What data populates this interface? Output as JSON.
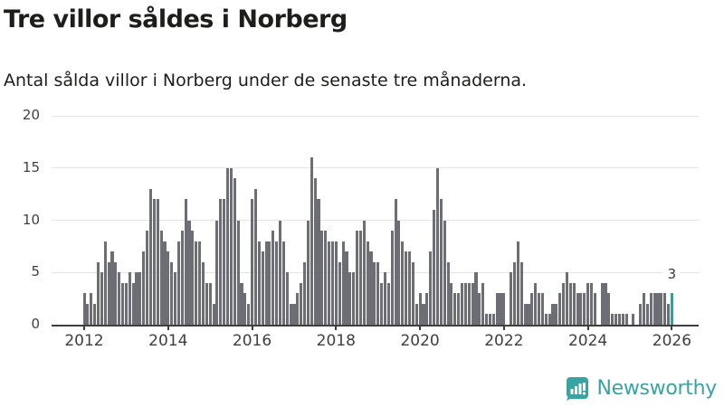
{
  "header": {
    "title": "Tre villor såldes i Norberg",
    "subtitle": "Antal sålda villor i Norberg under de senaste tre månaderna."
  },
  "chart_data": {
    "type": "bar",
    "title": "Tre villor såldes i Norberg",
    "subtitle": "Antal sålda villor i Norberg under de senaste tre månaderna.",
    "x_description": "months, January 2012 - January 2026",
    "start_month": "2012-01",
    "frequency": "monthly",
    "values": [
      3,
      2,
      3,
      2,
      6,
      5,
      8,
      6,
      7,
      6,
      5,
      4,
      4,
      5,
      4,
      5,
      5,
      7,
      9,
      13,
      12,
      12,
      9,
      8,
      7,
      6,
      5,
      8,
      9,
      12,
      10,
      9,
      8,
      8,
      6,
      4,
      4,
      2,
      10,
      12,
      12,
      15,
      15,
      14,
      10,
      4,
      3,
      2,
      12,
      13,
      8,
      7,
      8,
      8,
      9,
      8,
      10,
      8,
      5,
      2,
      2,
      3,
      4,
      6,
      10,
      16,
      14,
      12,
      9,
      9,
      8,
      8,
      8,
      6,
      8,
      7,
      5,
      5,
      9,
      9,
      10,
      8,
      7,
      6,
      6,
      4,
      5,
      4,
      9,
      12,
      10,
      8,
      7,
      7,
      6,
      2,
      3,
      2,
      3,
      7,
      11,
      15,
      12,
      10,
      6,
      4,
      3,
      3,
      4,
      4,
      4,
      4,
      5,
      3,
      4,
      1,
      1,
      1,
      3,
      3,
      3,
      0,
      5,
      6,
      8,
      6,
      2,
      2,
      3,
      4,
      3,
      3,
      1,
      1,
      2,
      2,
      3,
      4,
      5,
      4,
      4,
      3,
      3,
      3,
      4,
      4,
      3,
      0,
      4,
      4,
      3,
      1,
      1,
      1,
      1,
      1,
      0,
      1,
      0,
      2,
      3,
      2,
      3,
      3,
      3,
      3,
      3,
      2,
      3
    ],
    "highlight_index": 168,
    "highlight_label": "3",
    "ylim": [
      0,
      20
    ],
    "y_ticks": [
      0,
      5,
      10,
      15,
      20
    ],
    "x_tick_labels": [
      "2012",
      "2014",
      "2016",
      "2018",
      "2020",
      "2022",
      "2024",
      "2026"
    ],
    "grid": true,
    "legend": "none",
    "bar_color": "#6d6d76",
    "highlight_color": "#2aa3a2"
  },
  "footer": {
    "brand": "Newsworthy",
    "brand_color": "#3aa3a2"
  }
}
